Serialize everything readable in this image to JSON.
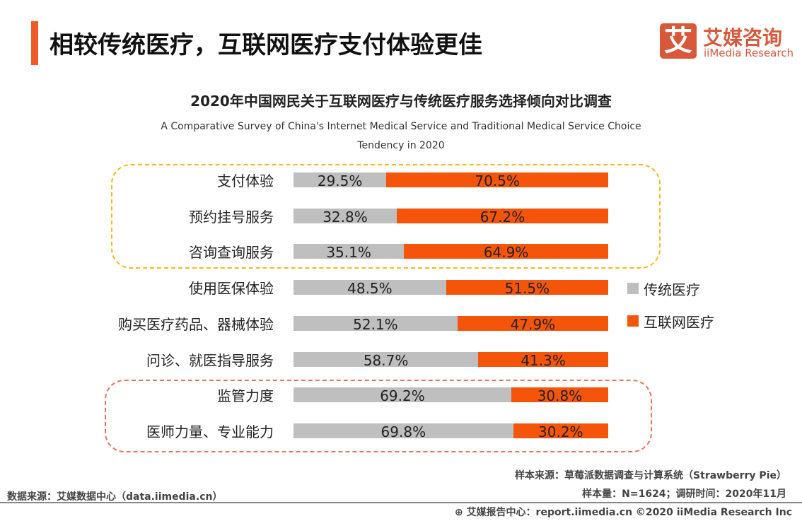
{
  "header": {
    "title": "相较传统医疗，互联网医疗支付体验更佳"
  },
  "logo": {
    "mark": "艾",
    "cn": "艾媒咨询",
    "en": "iiMedia Research",
    "color": "#d9583a"
  },
  "chart_data": {
    "type": "bar",
    "stacked": true,
    "orientation": "horizontal",
    "title": "2020年中国网民关于互联网医疗与传统医疗服务选择倾向对比调查",
    "subtitle": "A Comparative Survey of China's Internet Medical Service and Traditional Medical Service Choice Tendency in 2020",
    "categories": [
      "支付体验",
      "预约挂号服务",
      "咨询查询服务",
      "使用医保体验",
      "购买医疗药品、器械体验",
      "问诊、就医指导服务",
      "监管力度",
      "医师力量、专业能力"
    ],
    "series": [
      {
        "name": "传统医疗",
        "color": "#bfbfbf",
        "values": [
          29.5,
          32.8,
          35.1,
          48.5,
          52.1,
          58.7,
          69.2,
          69.8
        ]
      },
      {
        "name": "互联网医疗",
        "color": "#f5550a",
        "values": [
          70.5,
          67.2,
          64.9,
          51.5,
          47.9,
          41.3,
          30.8,
          30.2
        ]
      }
    ],
    "unit": "%",
    "legend": "right",
    "highlight_groups": [
      {
        "rows": [
          0,
          1,
          2
        ],
        "color": "#f5b820"
      },
      {
        "rows": [
          6,
          7
        ],
        "color": "#e8765a"
      }
    ]
  },
  "footer": {
    "sample_source": "样本来源：草莓派数据调查与计算系统（Strawberry Pie）",
    "sample_size": "样本量：N=1624；调研时间：2020年11月",
    "data_source": "数据来源：艾媒数据中心（data.iimedia.cn）",
    "report_center": "艾媒报告中心：report.iimedia.cn  ©2020  iiMedia Research  Inc"
  }
}
